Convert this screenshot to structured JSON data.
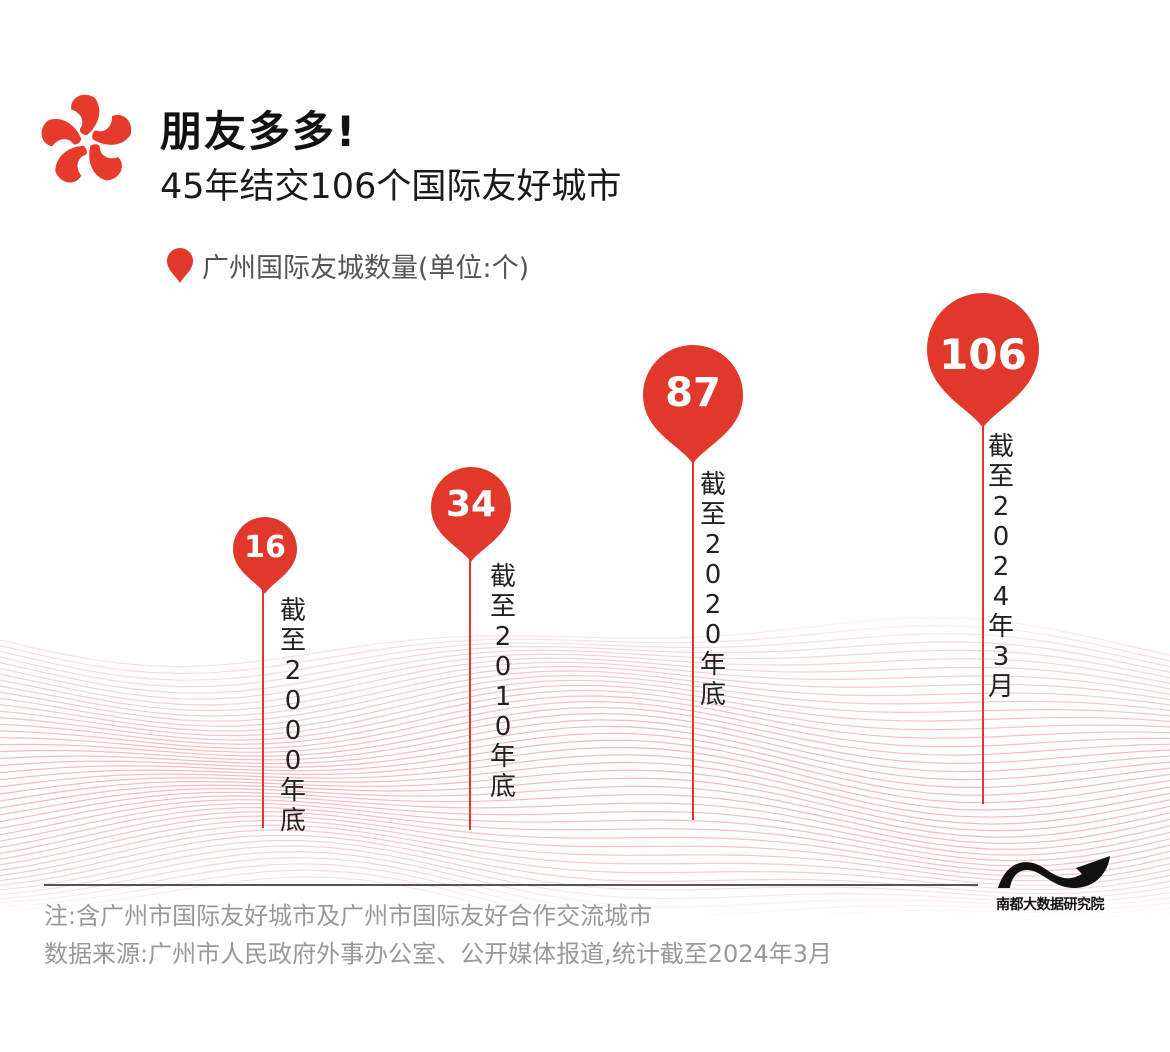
{
  "header": {
    "title": "朋友多多!",
    "subtitle": "45年结交106个国际友好城市"
  },
  "legend": {
    "label": "广州国际友城数量(单位:个)",
    "color": "#e0392b"
  },
  "colors": {
    "accent": "#e0392b",
    "wave": "#f4a6ac"
  },
  "markers": [
    {
      "value": "16",
      "label_chars": [
        "截",
        "至",
        "2",
        "0",
        "0",
        "0",
        "年",
        "底"
      ]
    },
    {
      "value": "34",
      "label_chars": [
        "截",
        "至",
        "2",
        "0",
        "1",
        "0",
        "年",
        "底"
      ]
    },
    {
      "value": "87",
      "label_chars": [
        "截",
        "至",
        "2",
        "0",
        "2",
        "0",
        "年",
        "底"
      ]
    },
    {
      "value": "106",
      "label_chars": [
        "截",
        "至",
        "2",
        "0",
        "2",
        "4",
        "年",
        "3",
        "月"
      ]
    }
  ],
  "footer": {
    "note": "注:含广州市国际友好城市及广州市国际友好合作交流城市",
    "source": "数据来源:广州市人民政府外事办公室、公开媒体报道,统计截至2024年3月",
    "brand": "南都大数据研究院"
  },
  "chart_data": {
    "type": "bar",
    "title": "朋友多多!45年结交106个国际友好城市",
    "categories": [
      "截至2000年底",
      "截至2010年底",
      "截至2020年底",
      "截至2024年3月"
    ],
    "series": [
      {
        "name": "广州国际友城数量(单位:个)",
        "values": [
          16,
          34,
          87,
          106
        ]
      }
    ],
    "xlabel": "",
    "ylabel": "个",
    "legend_position": "top-left",
    "grid": false,
    "notes": [
      "注:含广州市国际友好城市及广州市国际友好合作交流城市",
      "数据来源:广州市人民政府外事办公室、公开媒体报道,统计截至2024年3月"
    ]
  }
}
